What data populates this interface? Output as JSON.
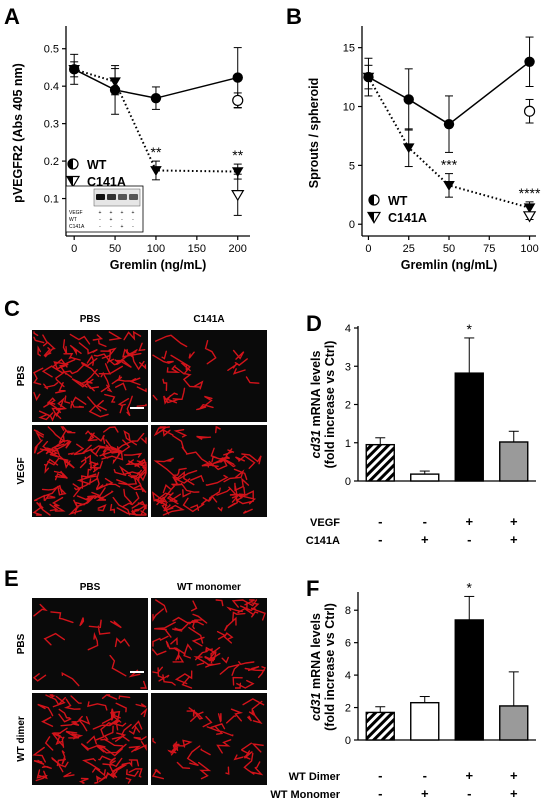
{
  "panels": {
    "A": "A",
    "B": "B",
    "C": "C",
    "D": "D",
    "E": "E",
    "F": "F"
  },
  "chart_data": [
    {
      "id": "A",
      "type": "line",
      "xlabel": "Gremlin (ng/mL)",
      "ylabel": "pVEGFR2 (Abs 405 nm)",
      "xlim": [
        -10,
        215
      ],
      "ylim": [
        0.0,
        0.55
      ],
      "xticks": [
        0,
        50,
        100,
        150,
        200
      ],
      "yticks": [
        0.1,
        0.2,
        0.3,
        0.4,
        0.5
      ],
      "x": [
        0,
        50,
        100,
        200
      ],
      "series": [
        {
          "name": "WT",
          "marker": "circle",
          "line": "solid",
          "values": [
            0.445,
            0.39,
            0.368,
            0.423
          ],
          "errors": [
            0.04,
            0.065,
            0.03,
            0.08
          ]
        },
        {
          "name": "C141A",
          "marker": "triangle",
          "line": "dotted",
          "values": [
            0.445,
            0.412,
            0.175,
            0.172
          ],
          "errors": [
            0.02,
            0.035,
            0.025,
            0.02
          ]
        }
      ],
      "open_points": [
        {
          "series": "WT",
          "x": 200,
          "y": 0.362,
          "error": 0.02
        },
        {
          "series": "C141A",
          "x": 200,
          "y": 0.11,
          "error": 0.055
        }
      ],
      "annotations": [
        {
          "x": 100,
          "text": "**"
        },
        {
          "x": 200,
          "text": "**"
        }
      ],
      "legend": [
        "WT",
        "C141A"
      ],
      "inset": {
        "rows": [
          "VEGF",
          "WT",
          "C141A"
        ],
        "cols": [
          [
            "+",
            "-",
            "-"
          ],
          [
            "+",
            "+",
            "-"
          ],
          [
            "+",
            "-",
            "+"
          ],
          [
            "+",
            "-",
            "-"
          ]
        ]
      }
    },
    {
      "id": "B",
      "type": "line",
      "xlabel": "Gremlin (ng/mL)",
      "ylabel": "Sprouts / spheroid",
      "xlim": [
        -4,
        104
      ],
      "ylim": [
        -1,
        16.5
      ],
      "xticks": [
        0,
        25,
        50,
        75,
        100
      ],
      "yticks": [
        0,
        5,
        10,
        15
      ],
      "x": [
        0,
        25,
        50,
        100
      ],
      "series": [
        {
          "name": "WT",
          "marker": "circle",
          "line": "solid",
          "values": [
            12.5,
            10.6,
            8.5,
            13.8
          ],
          "errors": [
            1.6,
            2.6,
            2.4,
            2.1
          ]
        },
        {
          "name": "C141A",
          "marker": "triangle",
          "line": "dotted",
          "values": [
            12.5,
            6.5,
            3.3,
            1.4
          ],
          "errors": [
            1.0,
            1.6,
            1.0,
            0.5
          ]
        }
      ],
      "open_points": [
        {
          "series": "WT",
          "x": 100,
          "y": 9.6,
          "error": 1.0
        },
        {
          "series": "C141A",
          "x": 100,
          "y": 0.7,
          "error": 0.3
        }
      ],
      "annotations": [
        {
          "x": 50,
          "text": "***"
        },
        {
          "x": 100,
          "text": "****"
        }
      ],
      "legend": [
        "WT",
        "C141A"
      ]
    },
    {
      "id": "D",
      "type": "bar",
      "ylabel_italic": "cd31",
      "ylabel_rest": " mRNA levels",
      "ylabel2": "(fold increase vs Ctrl)",
      "ylim": [
        0,
        4
      ],
      "yticks": [
        0,
        1,
        2,
        3,
        4
      ],
      "values": [
        0.95,
        0.18,
        2.82,
        1.02
      ],
      "errors": [
        0.18,
        0.08,
        0.92,
        0.28
      ],
      "fills": [
        "hatch",
        "white",
        "black",
        "gray"
      ],
      "annotations": [
        {
          "bar": 2,
          "text": "*"
        }
      ],
      "conditions": [
        {
          "label": "VEGF",
          "marks": [
            "-",
            "-",
            "+",
            "+"
          ]
        },
        {
          "label": "C141A",
          "marks": [
            "-",
            "+",
            "-",
            "+"
          ]
        }
      ]
    },
    {
      "id": "F",
      "type": "bar",
      "ylabel_italic": "cd31",
      "ylabel_rest": " mRNA levels",
      "ylabel2": "(fold increase vs Ctrl)",
      "ylim": [
        0,
        9
      ],
      "yticks": [
        0,
        2,
        4,
        6,
        8
      ],
      "values": [
        1.7,
        2.3,
        7.4,
        2.1
      ],
      "errors": [
        0.35,
        0.38,
        1.45,
        2.1
      ],
      "fills": [
        "hatch",
        "white",
        "black",
        "gray"
      ],
      "annotations": [
        {
          "bar": 2,
          "text": "*"
        }
      ],
      "conditions": [
        {
          "label": "WT Dimer",
          "marks": [
            "-",
            "-",
            "+",
            "+"
          ]
        },
        {
          "label": "WT Monomer",
          "marks": [
            "-",
            "+",
            "-",
            "+"
          ]
        }
      ]
    }
  ],
  "micrographs": {
    "C": {
      "cols": [
        "PBS",
        "C141A"
      ],
      "rows": [
        "PBS",
        "VEGF"
      ]
    },
    "E": {
      "cols": [
        "PBS",
        "WT monomer"
      ],
      "rows": [
        "PBS",
        "WT dimer"
      ]
    }
  },
  "colors": {
    "signal": "#e8141c",
    "background": "#0a0a0a",
    "bar_gray": "#9a9a9a"
  }
}
